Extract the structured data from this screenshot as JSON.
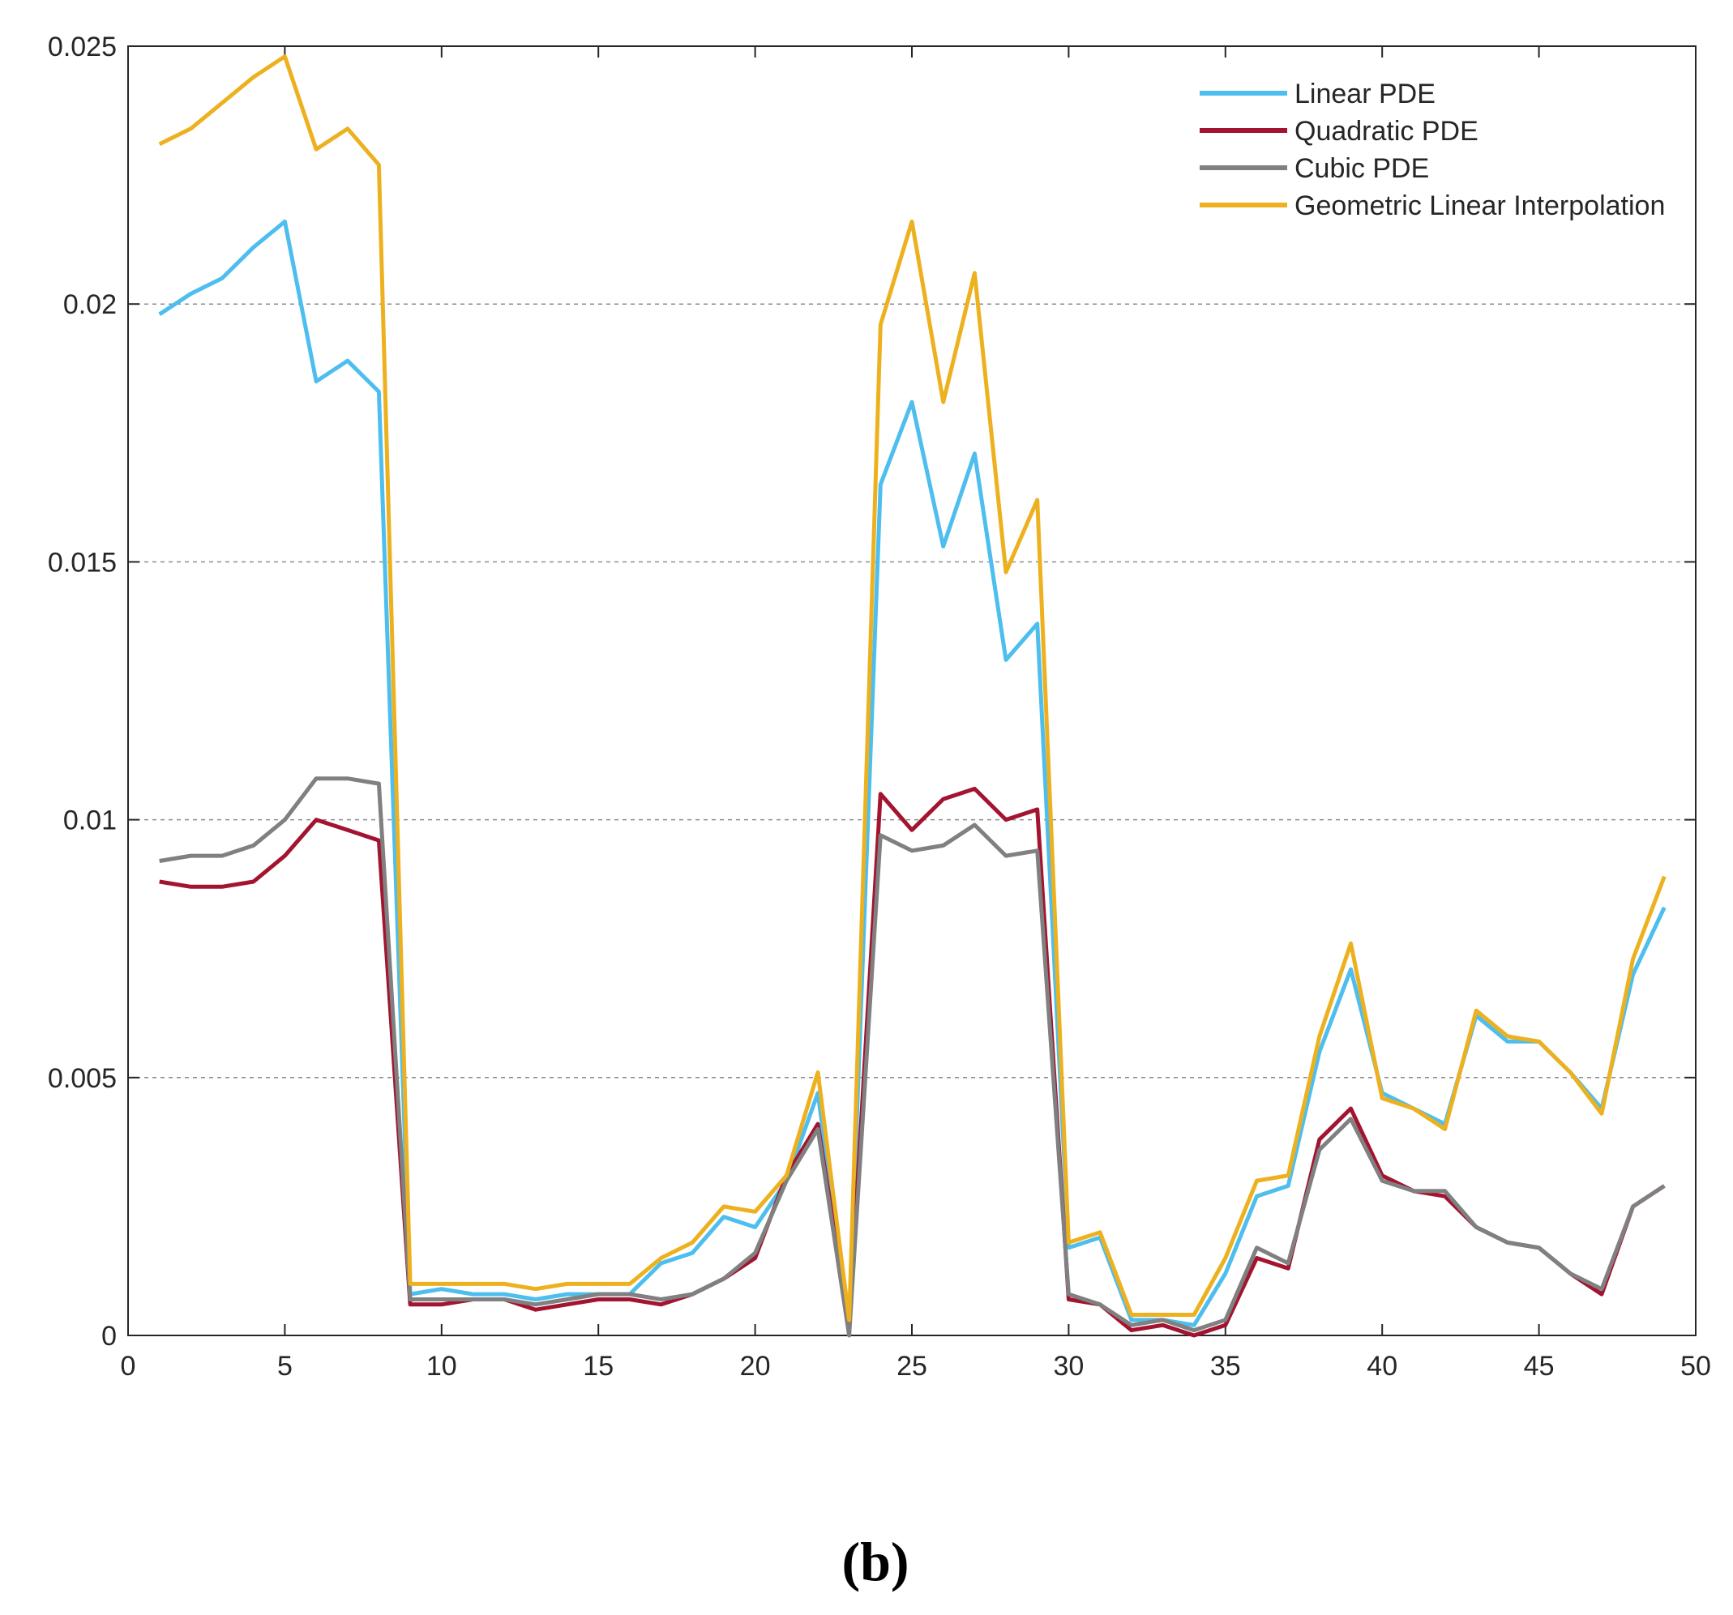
{
  "caption": "(b)",
  "chart_data": {
    "type": "line",
    "title": "",
    "xlabel": "",
    "ylabel": "",
    "xlim": [
      0,
      50
    ],
    "ylim": [
      0,
      0.025
    ],
    "xticks": [
      0,
      5,
      10,
      15,
      20,
      25,
      30,
      35,
      40,
      45,
      50
    ],
    "xtick_labels": [
      "0",
      "5",
      "10",
      "15",
      "20",
      "25",
      "30",
      "35",
      "40",
      "45",
      "50"
    ],
    "yticks": [
      0,
      0.005,
      0.01,
      0.015,
      0.02,
      0.025
    ],
    "ytick_labels": [
      "0",
      "0.005",
      "0.01",
      "0.015",
      "0.02",
      "0.025"
    ],
    "grid": "horizontal-dashed",
    "legend_position": "top-right",
    "x": [
      1,
      2,
      3,
      4,
      5,
      6,
      7,
      8,
      9,
      10,
      11,
      12,
      13,
      14,
      15,
      16,
      17,
      18,
      19,
      20,
      21,
      22,
      23,
      24,
      25,
      26,
      27,
      28,
      29,
      30,
      31,
      32,
      33,
      34,
      35,
      36,
      37,
      38,
      39,
      40,
      41,
      42,
      43,
      44,
      45,
      46,
      47,
      48,
      49
    ],
    "series": [
      {
        "name": "Linear PDE",
        "color": "#4dbeee",
        "values": [
          0.0198,
          0.0202,
          0.0205,
          0.0211,
          0.0216,
          0.0185,
          0.0189,
          0.0183,
          0.0008,
          0.0009,
          0.0008,
          0.0008,
          0.0007,
          0.0008,
          0.0008,
          0.0008,
          0.0014,
          0.0016,
          0.0023,
          0.0021,
          0.003,
          0.0047,
          0.0002,
          0.0165,
          0.0181,
          0.0153,
          0.0171,
          0.0131,
          0.0138,
          0.0017,
          0.0019,
          0.0003,
          0.0003,
          0.0002,
          0.0012,
          0.0027,
          0.0029,
          0.0055,
          0.0071,
          0.0047,
          0.0044,
          0.0041,
          0.0062,
          0.0057,
          0.0057,
          0.0051,
          0.0044,
          0.007,
          0.0083
        ]
      },
      {
        "name": "Quadratic PDE",
        "color": "#a2142f",
        "values": [
          0.0088,
          0.0087,
          0.0087,
          0.0088,
          0.0093,
          0.01,
          0.0098,
          0.0096,
          0.0006,
          0.0006,
          0.0007,
          0.0007,
          0.0005,
          0.0006,
          0.0007,
          0.0007,
          0.0006,
          0.0008,
          0.0011,
          0.0015,
          0.0031,
          0.0041,
          0.0002,
          0.0105,
          0.0098,
          0.0104,
          0.0106,
          0.01,
          0.0102,
          0.0007,
          0.0006,
          0.0001,
          0.0002,
          0.0,
          0.0002,
          0.0015,
          0.0013,
          0.0038,
          0.0044,
          0.0031,
          0.0028,
          0.0027,
          0.0021,
          0.0018,
          0.0017,
          0.0012,
          0.0008,
          0.0025,
          0.0029
        ]
      },
      {
        "name": "Cubic PDE",
        "color": "#808080",
        "values": [
          0.0092,
          0.0093,
          0.0093,
          0.0095,
          0.01,
          0.0108,
          0.0108,
          0.0107,
          0.0007,
          0.0007,
          0.0007,
          0.0007,
          0.0006,
          0.0007,
          0.0008,
          0.0008,
          0.0007,
          0.0008,
          0.0011,
          0.0016,
          0.003,
          0.004,
          0.0,
          0.0097,
          0.0094,
          0.0095,
          0.0099,
          0.0093,
          0.0094,
          0.0008,
          0.0006,
          0.0002,
          0.0003,
          0.0001,
          0.0003,
          0.0017,
          0.0014,
          0.0036,
          0.0042,
          0.003,
          0.0028,
          0.0028,
          0.0021,
          0.0018,
          0.0017,
          0.0012,
          0.0009,
          0.0025,
          0.0029
        ]
      },
      {
        "name": "Geometric Linear Interpolation",
        "color": "#edb120",
        "values": [
          0.0231,
          0.0234,
          0.0239,
          0.0244,
          0.0248,
          0.023,
          0.0234,
          0.0227,
          0.001,
          0.001,
          0.001,
          0.001,
          0.0009,
          0.001,
          0.001,
          0.001,
          0.0015,
          0.0018,
          0.0025,
          0.0024,
          0.0031,
          0.0051,
          0.0003,
          0.0196,
          0.0216,
          0.0181,
          0.0206,
          0.0148,
          0.0162,
          0.0018,
          0.002,
          0.0004,
          0.0004,
          0.0004,
          0.0015,
          0.003,
          0.0031,
          0.0058,
          0.0076,
          0.0046,
          0.0044,
          0.004,
          0.0063,
          0.0058,
          0.0057,
          0.0051,
          0.0043,
          0.0073,
          0.0089
        ]
      }
    ]
  }
}
